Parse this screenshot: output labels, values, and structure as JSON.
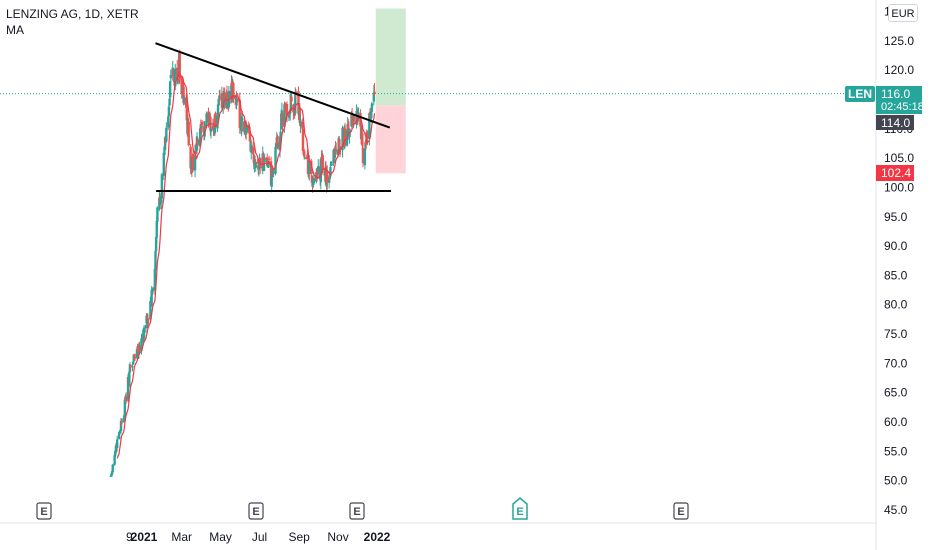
{
  "header": {
    "symbol_line": "LENZING AG, 1D, XETR",
    "indicator": "MA",
    "currency": "EUR"
  },
  "price_tags": {
    "ticker": "LEN",
    "last_price": "116.0",
    "countdown": "02:45:18",
    "breakout_level": "114.0",
    "stop_level": "102.4"
  },
  "colors": {
    "up": "#26a69a",
    "down": "#ef5350",
    "ma": "#f23645",
    "trendline": "#000000",
    "target_zone": "#c8e6c9",
    "stop_zone": "#ffcdd2",
    "axis_text": "#131722",
    "last_tag": "#26a69a",
    "breakout_tag": "#434651",
    "stop_tag": "#f23645"
  },
  "chart_data": {
    "type": "candlestick",
    "y_axis_ticks": [
      "45.0",
      "50.0",
      "55.0",
      "60.0",
      "65.0",
      "70.0",
      "75.0",
      "80.0",
      "85.0",
      "90.0",
      "95.0",
      "100.0",
      "105.0",
      "110.0",
      "115.0",
      "120.0",
      "125.0",
      "130.0"
    ],
    "y_axis_partial_top": "13",
    "ylim": [
      43,
      132
    ],
    "x_axis_labels": [
      "9",
      "2021",
      "Mar",
      "May",
      "Jul",
      "Sep",
      "Nov",
      "2022"
    ],
    "event_markers": [
      "E",
      "E",
      "E",
      "E",
      "E",
      "E"
    ],
    "close_anchors": [
      {
        "date": "2020-11-10",
        "v": 51
      },
      {
        "date": "2020-11-20",
        "v": 57
      },
      {
        "date": "2020-12-01",
        "v": 62
      },
      {
        "date": "2020-12-10",
        "v": 69
      },
      {
        "date": "2020-12-20",
        "v": 72
      },
      {
        "date": "2020-12-31",
        "v": 75
      },
      {
        "date": "2021-01-08",
        "v": 78
      },
      {
        "date": "2021-01-14",
        "v": 82
      },
      {
        "date": "2021-01-18",
        "v": 86
      },
      {
        "date": "2021-01-22",
        "v": 96
      },
      {
        "date": "2021-01-27",
        "v": 99
      },
      {
        "date": "2021-02-02",
        "v": 106
      },
      {
        "date": "2021-02-08",
        "v": 113
      },
      {
        "date": "2021-02-12",
        "v": 119
      },
      {
        "date": "2021-02-18",
        "v": 118
      },
      {
        "date": "2021-02-25",
        "v": 121
      },
      {
        "date": "2021-03-03",
        "v": 116
      },
      {
        "date": "2021-03-10",
        "v": 111
      },
      {
        "date": "2021-03-16",
        "v": 103
      },
      {
        "date": "2021-03-22",
        "v": 106
      },
      {
        "date": "2021-04-01",
        "v": 109
      },
      {
        "date": "2021-04-12",
        "v": 112
      },
      {
        "date": "2021-04-20",
        "v": 110
      },
      {
        "date": "2021-04-30",
        "v": 114
      },
      {
        "date": "2021-05-10",
        "v": 115
      },
      {
        "date": "2021-05-20",
        "v": 116
      },
      {
        "date": "2021-05-31",
        "v": 112
      },
      {
        "date": "2021-06-10",
        "v": 110
      },
      {
        "date": "2021-06-20",
        "v": 106
      },
      {
        "date": "2021-07-01",
        "v": 104
      },
      {
        "date": "2021-07-12",
        "v": 105
      },
      {
        "date": "2021-07-20",
        "v": 101
      },
      {
        "date": "2021-07-28",
        "v": 107
      },
      {
        "date": "2021-08-06",
        "v": 112
      },
      {
        "date": "2021-08-18",
        "v": 114
      },
      {
        "date": "2021-08-31",
        "v": 114
      },
      {
        "date": "2021-09-03",
        "v": 112
      },
      {
        "date": "2021-09-10",
        "v": 105
      },
      {
        "date": "2021-09-17",
        "v": 103
      },
      {
        "date": "2021-09-24",
        "v": 100
      },
      {
        "date": "2021-10-01",
        "v": 102
      },
      {
        "date": "2021-10-08",
        "v": 104
      },
      {
        "date": "2021-10-15",
        "v": 101
      },
      {
        "date": "2021-10-25",
        "v": 106
      },
      {
        "date": "2021-11-05",
        "v": 108
      },
      {
        "date": "2021-11-15",
        "v": 109
      },
      {
        "date": "2021-11-25",
        "v": 112
      },
      {
        "date": "2021-12-03",
        "v": 113
      },
      {
        "date": "2021-12-10",
        "v": 106
      },
      {
        "date": "2021-12-15",
        "v": 108
      },
      {
        "date": "2021-12-22",
        "v": 112
      },
      {
        "date": "2021-12-28",
        "v": 116
      }
    ],
    "moving_average": true,
    "trendlines": [
      {
        "name": "descending-resistance",
        "from": {
          "date": "2021-01-19",
          "price": 124.6
        },
        "to": {
          "date": "2022-01-21",
          "price": 110.2
        }
      },
      {
        "name": "horizontal-support",
        "from": {
          "date": "2021-01-20",
          "price": 99.4
        },
        "to": {
          "date": "2022-01-23",
          "price": 99.4
        }
      }
    ],
    "position": {
      "entry": 114.0,
      "target": 130.5,
      "stop": 102.4,
      "start_date": "2021-12-30",
      "end_date": "2022-02-15"
    },
    "last_price_line": 116.0
  }
}
